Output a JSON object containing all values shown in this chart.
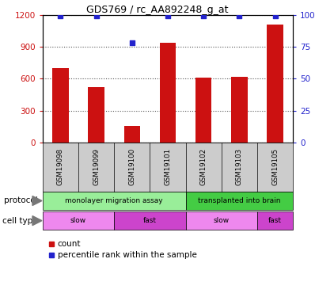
{
  "title": "GDS769 / rc_AA892248_g_at",
  "samples": [
    "GSM19098",
    "GSM19099",
    "GSM19100",
    "GSM19101",
    "GSM19102",
    "GSM19103",
    "GSM19105"
  ],
  "counts": [
    700,
    520,
    160,
    940,
    610,
    620,
    1110
  ],
  "percentile_ranks": [
    99,
    99,
    78,
    99,
    99,
    99,
    99
  ],
  "ylim_left": [
    0,
    1200
  ],
  "ylim_right": [
    0,
    100
  ],
  "yticks_left": [
    0,
    300,
    600,
    900,
    1200
  ],
  "yticks_right": [
    0,
    25,
    50,
    75,
    100
  ],
  "yticklabels_right": [
    "0",
    "25",
    "50",
    "75",
    "100%"
  ],
  "bar_color": "#cc1111",
  "dot_color": "#2222cc",
  "protocol_groups": [
    {
      "label": "monolayer migration assay",
      "start": 0,
      "end": 4,
      "color": "#99ee99"
    },
    {
      "label": "transplanted into brain",
      "start": 4,
      "end": 7,
      "color": "#44cc44"
    }
  ],
  "cell_type_groups": [
    {
      "label": "slow",
      "start": 0,
      "end": 2,
      "color": "#ee88ee"
    },
    {
      "label": "fast",
      "start": 2,
      "end": 4,
      "color": "#cc44cc"
    },
    {
      "label": "slow",
      "start": 4,
      "end": 6,
      "color": "#ee88ee"
    },
    {
      "label": "fast",
      "start": 6,
      "end": 7,
      "color": "#cc44cc"
    }
  ],
  "legend_items": [
    {
      "color": "#cc1111",
      "label": "count"
    },
    {
      "color": "#2222cc",
      "label": "percentile rank within the sample"
    }
  ],
  "ylabel_left_color": "#cc1111",
  "ylabel_right_color": "#2222cc",
  "grid_color": "#555555",
  "xtick_bg_color": "#cccccc",
  "background_color": "#ffffff"
}
